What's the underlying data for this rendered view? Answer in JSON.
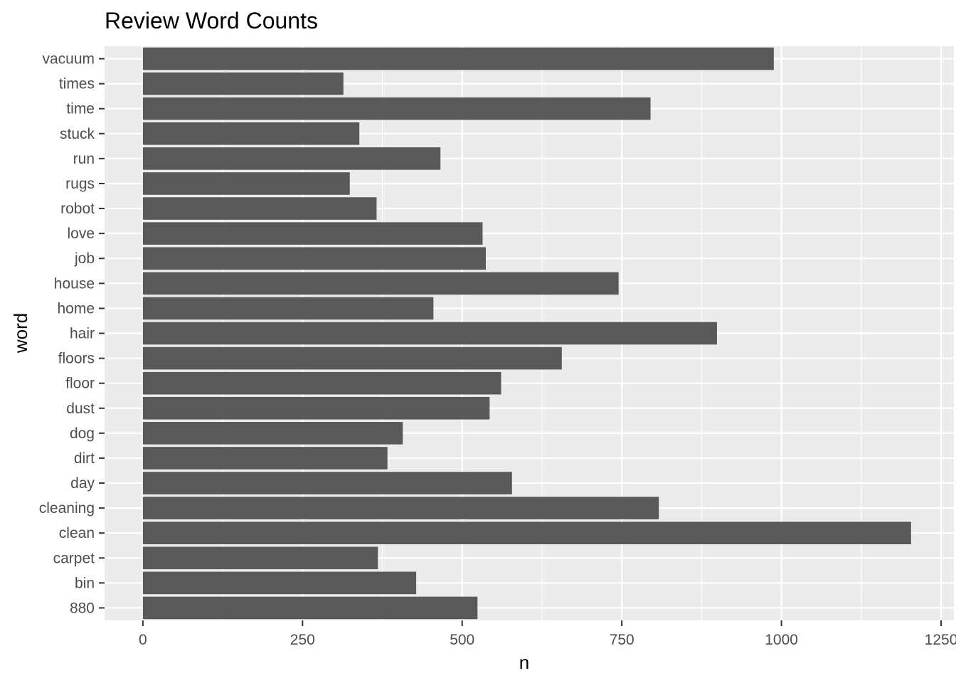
{
  "chart_data": {
    "type": "bar",
    "orientation": "horizontal",
    "title": "Review Word Counts",
    "xlabel": "n",
    "ylabel": "word",
    "xlim": [
      -60,
      1270
    ],
    "xticks": [
      0,
      250,
      500,
      750,
      1000,
      1250
    ],
    "grid": true,
    "categories": [
      "vacuum",
      "times",
      "time",
      "stuck",
      "run",
      "rugs",
      "robot",
      "love",
      "job",
      "house",
      "home",
      "hair",
      "floors",
      "floor",
      "dust",
      "dog",
      "dirt",
      "day",
      "cleaning",
      "clean",
      "carpet",
      "bin",
      "880"
    ],
    "values": [
      988,
      314,
      795,
      339,
      466,
      324,
      366,
      532,
      537,
      745,
      455,
      899,
      656,
      561,
      543,
      407,
      383,
      578,
      808,
      1203,
      368,
      428,
      524
    ],
    "colors": {
      "panel": "#ebebeb",
      "bar": "#595959",
      "grid": "#ffffff"
    }
  }
}
